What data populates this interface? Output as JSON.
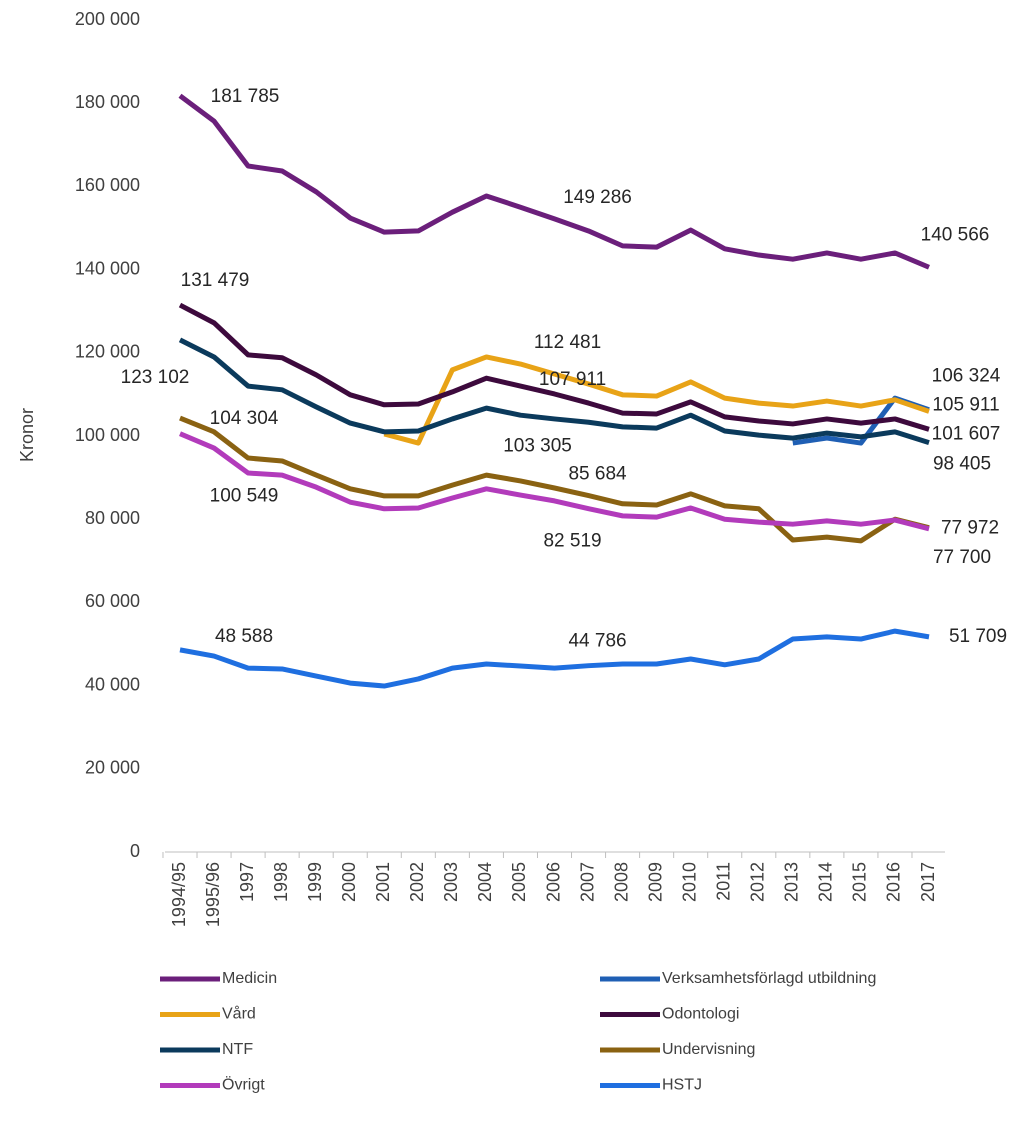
{
  "chart_data": {
    "type": "line",
    "y_axis_label": "Kronor",
    "categories": [
      "1994/95",
      "1995/96",
      "1997",
      "1998",
      "1999",
      "2000",
      "2001",
      "2002",
      "2003",
      "2004",
      "2005",
      "2006",
      "2007",
      "2008",
      "2009",
      "2010",
      "2011",
      "2012",
      "2013",
      "2014",
      "2015",
      "2016",
      "2017"
    ],
    "ylim": [
      0,
      200000
    ],
    "yticks": [
      0,
      {
        "value": 20000,
        "label": "20 000"
      },
      {
        "value": 40000,
        "label": "40 000"
      },
      {
        "value": 60000,
        "label": "60 000"
      },
      {
        "value": 80000,
        "label": "80 000"
      },
      {
        "value": 100000,
        "label": "100 000"
      },
      {
        "value": 120000,
        "label": "120 000"
      },
      {
        "value": 140000,
        "label": "140 000"
      },
      {
        "value": 160000,
        "label": "160 000"
      },
      {
        "value": 180000,
        "label": "180 000"
      },
      {
        "value": 200000,
        "label": "200 000"
      }
    ],
    "grid": false,
    "legend": "bottom",
    "series": [
      {
        "name": "Medicin",
        "color": "#6b1f7b",
        "values": [
          181785,
          175700,
          164900,
          163700,
          158700,
          152400,
          149000,
          149300,
          153800,
          157700,
          155000,
          152200,
          149286,
          145700,
          145400,
          149500,
          145000,
          143500,
          142500,
          144000,
          142500,
          144000,
          140566
        ],
        "value_labels": [
          "181 785",
          null,
          null,
          null,
          null,
          null,
          null,
          null,
          null,
          null,
          null,
          null,
          "149 286",
          null,
          null,
          null,
          null,
          null,
          null,
          null,
          null,
          null,
          "140 566"
        ]
      },
      {
        "name": "Verksamhetsförlagd utbildning",
        "color": "#1f5fb4",
        "values": [
          null,
          null,
          null,
          null,
          null,
          null,
          null,
          null,
          null,
          null,
          null,
          null,
          null,
          null,
          null,
          null,
          null,
          null,
          98300,
          99500,
          98300,
          109100,
          106324
        ],
        "value_labels": [
          null,
          null,
          null,
          null,
          null,
          null,
          null,
          null,
          null,
          null,
          null,
          null,
          null,
          null,
          null,
          null,
          null,
          null,
          null,
          null,
          null,
          null,
          "106 324"
        ]
      },
      {
        "name": "Vård",
        "color": "#e8a317",
        "values": [
          null,
          null,
          null,
          null,
          null,
          null,
          100500,
          98300,
          115900,
          119000,
          117300,
          114900,
          112481,
          109900,
          109600,
          113000,
          109100,
          107900,
          107200,
          108400,
          107200,
          108700,
          105911
        ],
        "value_labels": [
          null,
          null,
          null,
          null,
          null,
          null,
          null,
          null,
          null,
          null,
          null,
          null,
          "112 481",
          null,
          null,
          null,
          null,
          null,
          null,
          null,
          null,
          null,
          "105 911"
        ]
      },
      {
        "name": "Odontologi",
        "color": "#3d0a3d",
        "values": [
          131479,
          127200,
          119500,
          118800,
          114700,
          109900,
          107500,
          107700,
          110600,
          113900,
          112000,
          110100,
          107911,
          105500,
          105300,
          108200,
          104600,
          103600,
          102900,
          104100,
          103100,
          104100,
          101607
        ],
        "value_labels": [
          "131 479",
          null,
          null,
          null,
          null,
          null,
          null,
          null,
          null,
          null,
          null,
          null,
          "107 911",
          null,
          null,
          null,
          null,
          null,
          null,
          null,
          null,
          null,
          "101 607"
        ]
      },
      {
        "name": "NTF",
        "color": "#0b3a5c",
        "values": [
          123102,
          119000,
          112000,
          111100,
          107000,
          103100,
          101000,
          101200,
          104100,
          106700,
          105000,
          104100,
          103305,
          102200,
          101900,
          105000,
          101200,
          100200,
          99500,
          100700,
          99800,
          101000,
          98405
        ],
        "value_labels": [
          "123 102",
          null,
          null,
          null,
          null,
          null,
          null,
          null,
          null,
          null,
          null,
          null,
          "103 305",
          null,
          null,
          null,
          null,
          null,
          null,
          null,
          null,
          null,
          "98 405"
        ]
      },
      {
        "name": "Undervisning",
        "color": "#8a6212",
        "values": [
          104304,
          101000,
          94700,
          94000,
          90600,
          87300,
          85600,
          85600,
          88200,
          90600,
          89200,
          87500,
          85684,
          83700,
          83400,
          86100,
          83200,
          82500,
          75000,
          75700,
          74800,
          80000,
          77972
        ],
        "value_labels": [
          "104 304",
          null,
          null,
          null,
          null,
          null,
          null,
          null,
          null,
          null,
          null,
          null,
          "85 684",
          null,
          null,
          null,
          null,
          null,
          null,
          null,
          null,
          null,
          "77 972"
        ]
      },
      {
        "name": "Övrigt",
        "color": "#b23bbb",
        "values": [
          100549,
          97100,
          91100,
          90600,
          87700,
          84100,
          82500,
          82700,
          85100,
          87300,
          85800,
          84400,
          82519,
          80800,
          80500,
          82700,
          80000,
          79300,
          78800,
          79600,
          78800,
          79800,
          77700
        ],
        "value_labels": [
          "100 549",
          null,
          null,
          null,
          null,
          null,
          null,
          null,
          null,
          null,
          null,
          null,
          "82 519",
          null,
          null,
          null,
          null,
          null,
          null,
          null,
          null,
          null,
          "77 700"
        ]
      },
      {
        "name": "HSTJ",
        "color": "#1f6fe0",
        "values": [
          48588,
          47100,
          44200,
          44000,
          42300,
          40600,
          39900,
          41600,
          44200,
          45200,
          44700,
          44200,
          44786,
          45200,
          45200,
          46400,
          45000,
          46400,
          51200,
          51700,
          51200,
          53100,
          51709
        ],
        "value_labels": [
          "48 588",
          null,
          null,
          null,
          null,
          null,
          null,
          null,
          null,
          null,
          null,
          null,
          "44 786",
          null,
          null,
          null,
          null,
          null,
          null,
          null,
          null,
          null,
          "51 709"
        ]
      }
    ]
  }
}
